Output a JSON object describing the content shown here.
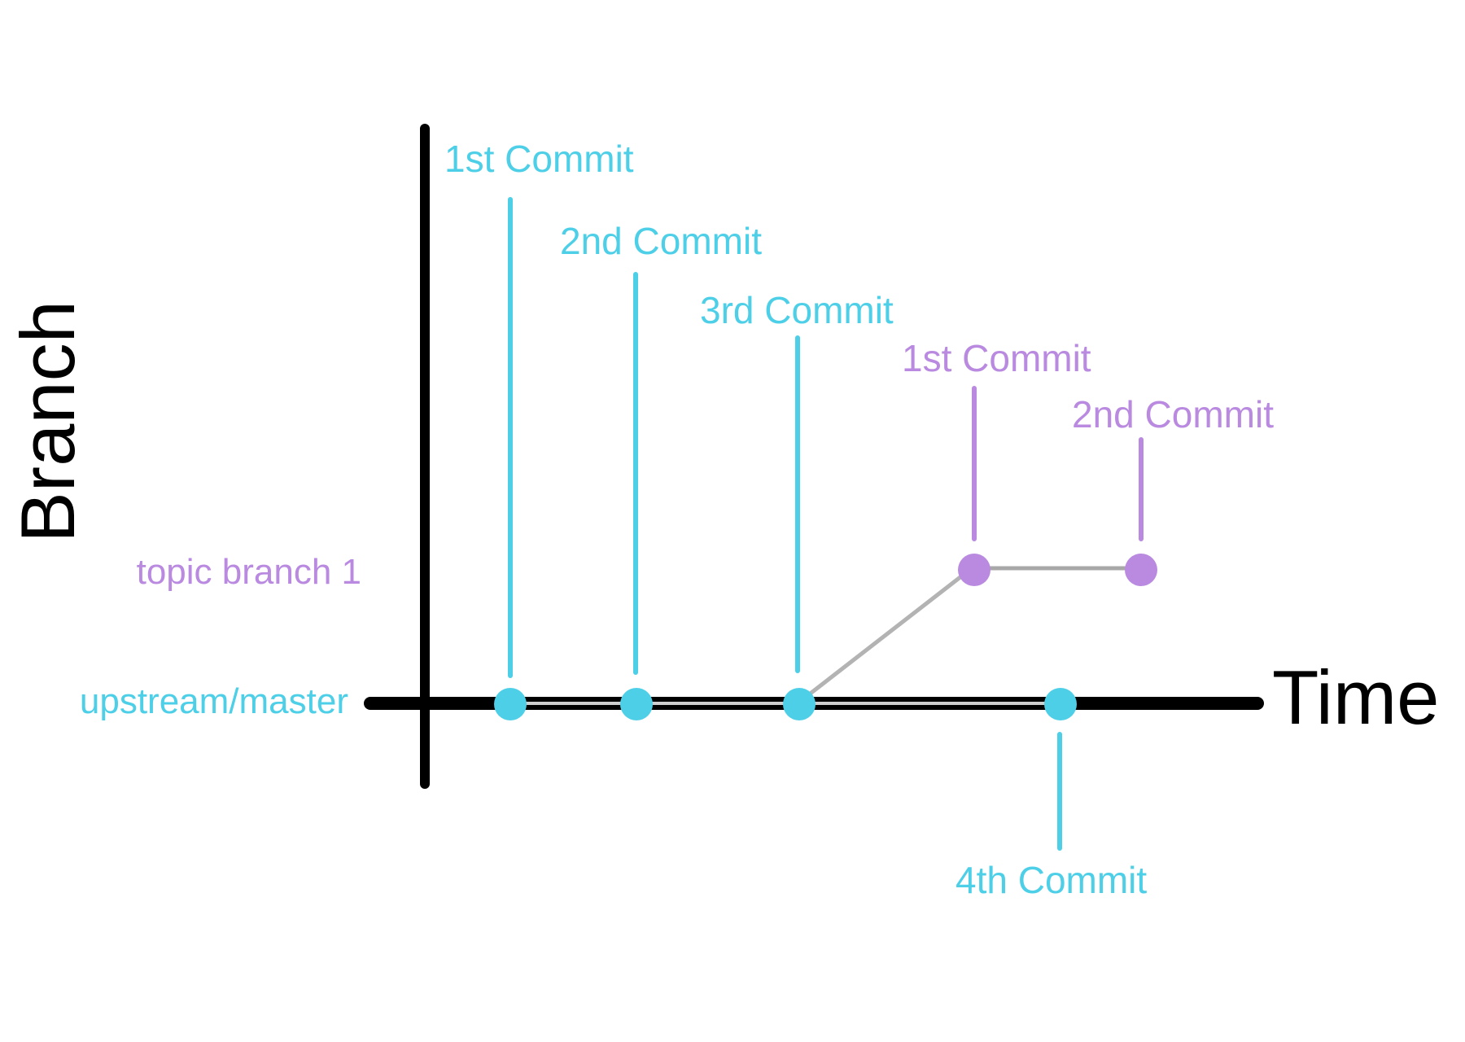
{
  "axes": {
    "x_label": "Time",
    "y_label": "Branch"
  },
  "colors": {
    "upstream": "#4dcfe8",
    "topic": "#b98ae0",
    "topic_band": "#e4d2f8",
    "axis": "#000000",
    "connector": "#b3b3b3"
  },
  "branches": {
    "upstream": {
      "label": "upstream/master"
    },
    "topic": {
      "label": "topic branch 1"
    }
  },
  "commits": {
    "upstream": [
      {
        "label": "1st Commit"
      },
      {
        "label": "2nd Commit"
      },
      {
        "label": "3rd Commit"
      },
      {
        "label": "4th Commit"
      }
    ],
    "topic": [
      {
        "label": "1st Commit"
      },
      {
        "label": "2nd Commit"
      }
    ]
  }
}
